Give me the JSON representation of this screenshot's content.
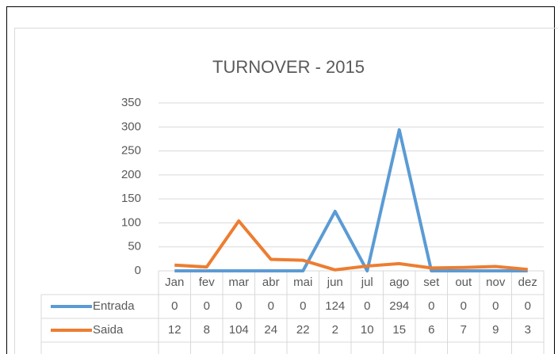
{
  "chart_data": {
    "type": "line",
    "title": "TURNOVER - 2015",
    "categories": [
      "Jan",
      "fev",
      "mar",
      "abr",
      "mai",
      "jun",
      "jul",
      "ago",
      "set",
      "out",
      "nov",
      "dez"
    ],
    "series": [
      {
        "name": "Entrada",
        "color": "#5b9bd5",
        "values": [
          0,
          0,
          0,
          0,
          0,
          124,
          0,
          294,
          0,
          0,
          0,
          0
        ]
      },
      {
        "name": "Saida",
        "color": "#ed7d31",
        "values": [
          12,
          8,
          104,
          24,
          22,
          2,
          10,
          15,
          6,
          7,
          9,
          3
        ]
      }
    ],
    "ylim": [
      0,
      350
    ],
    "yticks": [
      0,
      50,
      100,
      150,
      200,
      250,
      300,
      350
    ],
    "grid": true
  }
}
